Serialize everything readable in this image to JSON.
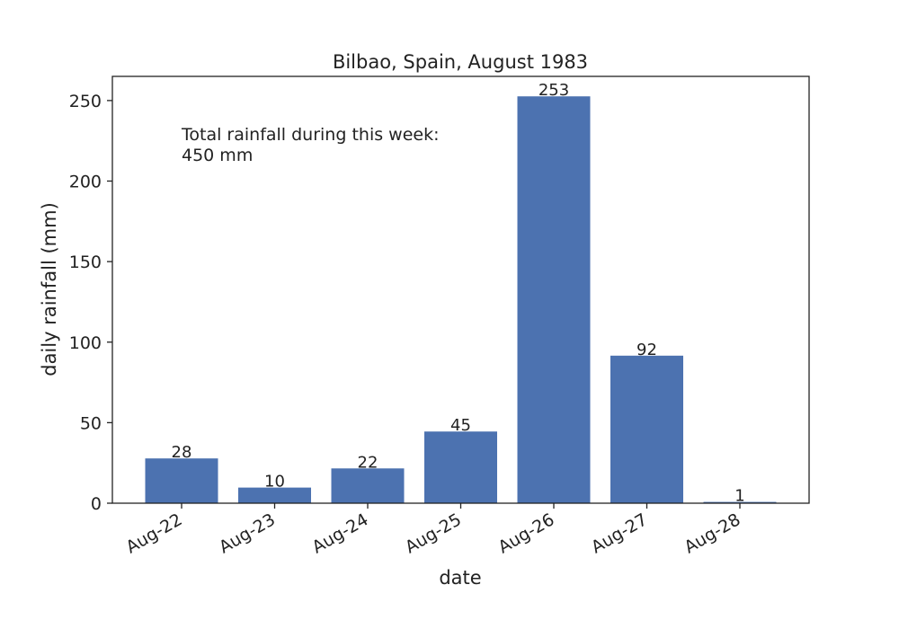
{
  "chart_data": {
    "type": "bar",
    "title": "Bilbao, Spain, August 1983",
    "xlabel": "date",
    "ylabel": "daily rainfall (mm)",
    "categories": [
      "Aug-22",
      "Aug-23",
      "Aug-24",
      "Aug-25",
      "Aug-26",
      "Aug-27",
      "Aug-28"
    ],
    "values": [
      27.8,
      9.7,
      21.6,
      44.5,
      252.6,
      91.6,
      0.8
    ],
    "value_labels": [
      "28",
      "10",
      "22",
      "45",
      "253",
      "92",
      "1"
    ],
    "yticks": [
      0,
      50,
      100,
      150,
      200,
      250
    ],
    "ylim": [
      0,
      265
    ],
    "annotation": [
      "Total rainfall during this week:",
      "450 mm"
    ],
    "bar_color": "#4c72b0",
    "grid": false,
    "legend": "none"
  }
}
